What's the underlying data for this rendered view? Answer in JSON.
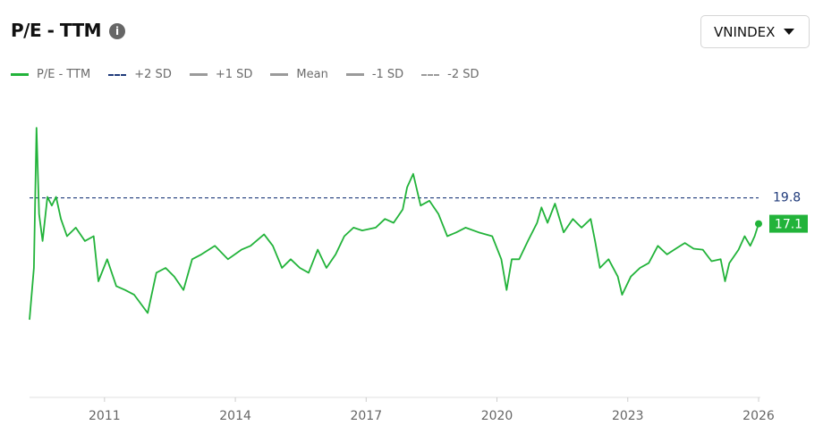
{
  "dropdown": "VNINDEX",
  "chart_data": {
    "type": "line",
    "title": "P/E - TTM",
    "x": [
      2009.28,
      2009.38,
      2009.44,
      2009.5,
      2009.58,
      2009.69,
      2009.79,
      2009.89,
      2010.0,
      2010.14,
      2010.34,
      2010.55,
      2010.75,
      2010.86,
      2011.06,
      2011.27,
      2011.47,
      2011.68,
      2011.99,
      2012.19,
      2012.4,
      2012.6,
      2012.81,
      2013.01,
      2013.22,
      2013.53,
      2013.83,
      2014.14,
      2014.35,
      2014.66,
      2014.86,
      2015.07,
      2015.27,
      2015.48,
      2015.68,
      2015.89,
      2016.09,
      2016.3,
      2016.5,
      2016.71,
      2016.91,
      2017.22,
      2017.43,
      2017.63,
      2017.84,
      2017.94,
      2018.08,
      2018.25,
      2018.45,
      2018.66,
      2018.86,
      2019.07,
      2019.28,
      2019.58,
      2019.89,
      2020.1,
      2020.22,
      2020.34,
      2020.51,
      2020.71,
      2020.92,
      2021.02,
      2021.16,
      2021.33,
      2021.53,
      2021.74,
      2021.94,
      2022.15,
      2022.25,
      2022.36,
      2022.56,
      2022.77,
      2022.87,
      2023.07,
      2023.28,
      2023.48,
      2023.69,
      2023.9,
      2024.1,
      2024.31,
      2024.51,
      2024.72,
      2024.92,
      2025.13,
      2025.23,
      2025.33,
      2025.54,
      2025.68,
      2025.81,
      2025.91,
      2026.0
    ],
    "series": [
      {
        "name": "P/E - TTM",
        "color": "#22b33a",
        "values": [
          7.1,
          12.5,
          27.1,
          18.1,
          15.3,
          19.9,
          19.0,
          19.9,
          17.6,
          15.8,
          16.7,
          15.3,
          15.8,
          11.1,
          13.4,
          10.6,
          10.2,
          9.7,
          7.8,
          12.0,
          12.5,
          11.6,
          10.2,
          13.4,
          13.9,
          14.8,
          13.4,
          14.4,
          14.8,
          16.0,
          14.8,
          12.5,
          13.4,
          12.5,
          12.0,
          14.4,
          12.5,
          13.9,
          15.8,
          16.7,
          16.4,
          16.7,
          17.6,
          17.2,
          18.6,
          20.9,
          22.3,
          19.0,
          19.5,
          18.1,
          15.8,
          16.2,
          16.7,
          16.2,
          15.8,
          13.4,
          10.2,
          13.4,
          13.4,
          15.3,
          17.2,
          18.8,
          17.2,
          19.2,
          16.2,
          17.6,
          16.7,
          17.6,
          15.3,
          12.5,
          13.4,
          11.6,
          9.7,
          11.6,
          12.5,
          13.0,
          14.8,
          13.9,
          14.5,
          15.1,
          14.5,
          14.4,
          13.2,
          13.4,
          11.1,
          13.0,
          14.4,
          15.8,
          14.8,
          15.8,
          17.1
        ]
      },
      {
        "name": "+2 SD",
        "color": "#1f3a7a",
        "dash": true,
        "visible": true,
        "value": 19.8
      },
      {
        "name": "+1 SD",
        "color": "#9a9a9a",
        "dash": false,
        "visible": false
      },
      {
        "name": "Mean",
        "color": "#9a9a9a",
        "dash": false,
        "visible": false
      },
      {
        "name": "-1 SD",
        "color": "#9a9a9a",
        "dash": false,
        "visible": false
      },
      {
        "name": "-2 SD",
        "color": "#9a9a9a",
        "dash": true,
        "visible": false
      }
    ],
    "xlim": [
      2009.28,
      2026.0
    ],
    "xticks": [
      2011,
      2014,
      2017,
      2020,
      2023,
      2026
    ],
    "ylim": [
      -1,
      30
    ],
    "grid": false
  }
}
